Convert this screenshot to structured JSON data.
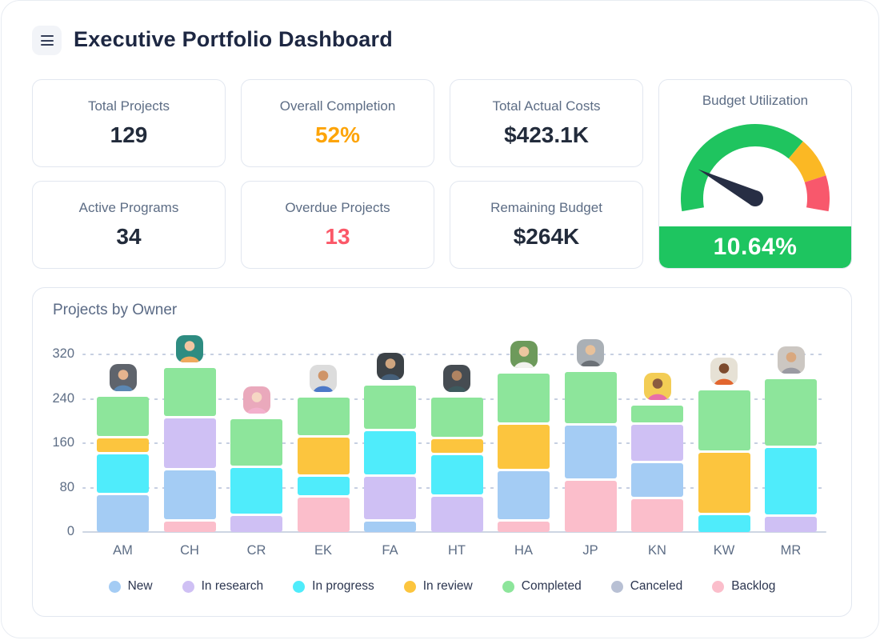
{
  "header": {
    "title": "Executive Portfolio Dashboard",
    "icons": {
      "menu": "hamburger-icon"
    }
  },
  "kpis": [
    {
      "label": "Total Projects",
      "value": "129",
      "value_color": "#222b3b"
    },
    {
      "label": "Overall Completion",
      "value": "52%",
      "value_color": "#fda408"
    },
    {
      "label": "Total Actual Costs",
      "value": "$423.1K",
      "value_color": "#222b3b"
    },
    {
      "label": "Active Programs",
      "value": "34",
      "value_color": "#222b3b"
    },
    {
      "label": "Overdue Projects",
      "value": "13",
      "value_color": "#fb5868"
    },
    {
      "label": "Remaining Budget",
      "value": "$264K",
      "value_color": "#222b3b"
    }
  ],
  "chart_data": [
    {
      "type": "gauge",
      "title": "Budget Utilization",
      "value_label": "10.64%",
      "banner_color": "#1ec560",
      "needle_color": "#272e44",
      "start_angle": 190,
      "end_angle": -10,
      "needle_fraction": 0.185,
      "segments": [
        {
          "name": "low",
          "color": "#1fc45f",
          "fraction": 0.7
        },
        {
          "name": "mid",
          "color": "#fbb824",
          "fraction": 0.16
        },
        {
          "name": "high",
          "color": "#f8586c",
          "fraction": 0.14
        }
      ]
    },
    {
      "type": "bar",
      "stacked": true,
      "title": "Projects by Owner",
      "ylim": [
        0,
        320
      ],
      "yticks": [
        0,
        80,
        160,
        240,
        320
      ],
      "grid": "dashed-horizontal",
      "legend_position": "bottom",
      "stack_order": [
        "Backlog",
        "New",
        "In research",
        "In progress",
        "In review",
        "Completed",
        "Canceled"
      ],
      "categories": [
        {
          "label": "AM",
          "avatar": {
            "bg": "#5f646c",
            "skin": "#e5b48e",
            "shirt": "#5b87b2"
          }
        },
        {
          "label": "CH",
          "avatar": {
            "bg": "#2e8c81",
            "skin": "#f2c6a2",
            "shirt": "#efa95d"
          }
        },
        {
          "label": "CR",
          "avatar": {
            "bg": "#eaa9bc",
            "skin": "#f6d7c4",
            "shirt": "#f3b0cd"
          }
        },
        {
          "label": "EK",
          "avatar": {
            "bg": "#dcdcdc",
            "skin": "#cf9467",
            "shirt": "#4d79c8"
          }
        },
        {
          "label": "FA",
          "avatar": {
            "bg": "#3c4247",
            "skin": "#cfa57f",
            "shirt": "#46607a"
          }
        },
        {
          "label": "HT",
          "avatar": {
            "bg": "#464c52",
            "skin": "#b08462",
            "shirt": "#3e5a5e"
          }
        },
        {
          "label": "HA",
          "avatar": {
            "bg": "#6d9a5b",
            "skin": "#ecc6a0",
            "shirt": "#f2f2ee"
          }
        },
        {
          "label": "JP",
          "avatar": {
            "bg": "#aab0b6",
            "skin": "#e8c19a",
            "shirt": "#6b7076"
          }
        },
        {
          "label": "KN",
          "avatar": {
            "bg": "#f3cd55",
            "skin": "#8a5b3f",
            "shirt": "#e86fa8"
          }
        },
        {
          "label": "KW",
          "avatar": {
            "bg": "#e6e1d5",
            "skin": "#7c4a2d",
            "shirt": "#e2662f"
          }
        },
        {
          "label": "MR",
          "avatar": {
            "bg": "#ccc7c2",
            "skin": "#d9a87f",
            "shirt": "#9a9aa2"
          }
        }
      ],
      "series": [
        {
          "name": "New",
          "color": "#a4ccf4",
          "values": [
            70,
            93,
            0,
            0,
            23,
            0,
            91,
            100,
            66,
            0,
            0
          ]
        },
        {
          "name": "In research",
          "color": "#cfc0f4",
          "values": [
            0,
            93,
            33,
            0,
            81,
            68,
            0,
            0,
            68,
            0,
            31
          ]
        },
        {
          "name": "In progress",
          "color": "#4fecfb",
          "values": [
            74,
            0,
            86,
            38,
            82,
            74,
            0,
            0,
            0,
            35,
            125
          ]
        },
        {
          "name": "In review",
          "color": "#fcc53e",
          "values": [
            29,
            0,
            0,
            70,
            0,
            30,
            84,
            0,
            0,
            112,
            0
          ]
        },
        {
          "name": "Completed",
          "color": "#8de59b",
          "values": [
            75,
            91,
            88,
            72,
            82,
            75,
            92,
            97,
            35,
            113,
            123
          ]
        },
        {
          "name": "Canceled",
          "color": "#b8c0d4",
          "values": [
            0,
            0,
            0,
            0,
            0,
            0,
            0,
            0,
            0,
            0,
            0
          ]
        },
        {
          "name": "Backlog",
          "color": "#fbbecb",
          "values": [
            0,
            23,
            0,
            66,
            0,
            0,
            23,
            96,
            63,
            0,
            0
          ]
        }
      ]
    }
  ]
}
